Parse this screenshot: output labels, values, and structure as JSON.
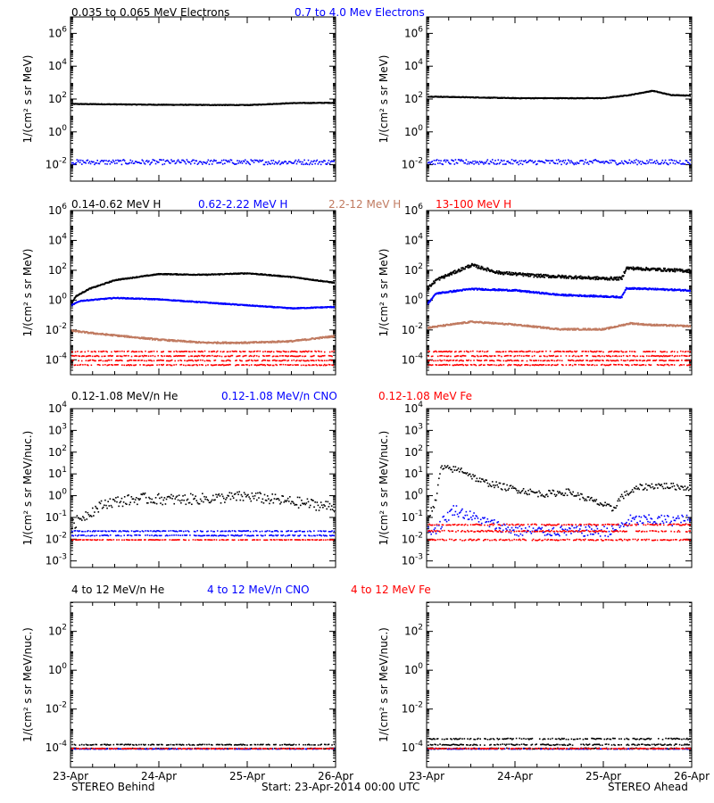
{
  "colors": {
    "black": "#000000",
    "blue": "#0000ff",
    "tan": "#c07a60",
    "red": "#ff0000"
  },
  "rows": [
    {
      "legend": [
        {
          "text": "0.035 to 0.065 MeV Electrons",
          "color": "#000000"
        },
        {
          "text": "0.7 to 4.0 Mev Electrons",
          "color": "#0000ff"
        }
      ],
      "ylabel": "1/(cm² s sr MeV)"
    },
    {
      "legend": [
        {
          "text": "0.14-0.62 MeV H",
          "color": "#000000"
        },
        {
          "text": "0.62-2.22 MeV H",
          "color": "#0000ff"
        },
        {
          "text": "2.2-12 MeV H",
          "color": "#c07a60"
        },
        {
          "text": "13-100 MeV H",
          "color": "#ff0000"
        }
      ],
      "ylabel": "1/(cm² s sr MeV)"
    },
    {
      "legend": [
        {
          "text": "0.12-1.08 MeV/n He",
          "color": "#000000"
        },
        {
          "text": "0.12-1.08 MeV/n CNO",
          "color": "#0000ff"
        },
        {
          "text": "0.12-1.08 MeV Fe",
          "color": "#ff0000"
        }
      ],
      "ylabel": "1/(cm² s sr MeV/nuc.)"
    },
    {
      "legend": [
        {
          "text": "4 to 12 MeV/n He",
          "color": "#000000"
        },
        {
          "text": "4 to 12 MeV/n CNO",
          "color": "#0000ff"
        },
        {
          "text": "4 to 12 MeV Fe",
          "color": "#ff0000"
        }
      ],
      "ylabel": "1/(cm² s sr MeV/nuc.)"
    }
  ],
  "x_ticks": [
    "23-Apr",
    "24-Apr",
    "25-Apr",
    "26-Apr"
  ],
  "footer": {
    "left": "STEREO Behind",
    "center": "Start: 23-Apr-2014 00:00 UTC",
    "right": "STEREO Ahead"
  },
  "chart_data": [
    {
      "type": "scatter",
      "panel": "electrons",
      "spacecraft": "Behind",
      "ylog": true,
      "ylim_exp": [
        -3,
        7
      ],
      "ytick_exps": [
        -2,
        0,
        2,
        4,
        6
      ],
      "x_days": [
        0,
        3
      ],
      "series": [
        {
          "name": "0.035 to 0.065 MeV Electrons",
          "color": "#000000",
          "style": "line",
          "keys_days": [
            0,
            1,
            2,
            2.5,
            3
          ],
          "keys_logy": [
            1.75,
            1.7,
            1.68,
            1.8,
            1.82
          ],
          "noise": 0.02
        },
        {
          "name": "0.7 to 4.0 Mev Electrons",
          "color": "#0000ff",
          "style": "dots",
          "keys_days": [
            0,
            3
          ],
          "keys_logy": [
            -1.8,
            -1.8
          ],
          "noise": 0.15
        }
      ]
    },
    {
      "type": "scatter",
      "panel": "electrons",
      "spacecraft": "Ahead",
      "ylog": true,
      "ylim_exp": [
        -3,
        7
      ],
      "ytick_exps": [
        -2,
        0,
        2,
        4,
        6
      ],
      "x_days": [
        0,
        3
      ],
      "series": [
        {
          "name": "0.035 to 0.065 MeV Electrons",
          "color": "#000000",
          "style": "line",
          "keys_days": [
            0,
            1,
            2,
            2.3,
            2.55,
            2.75,
            3
          ],
          "keys_logy": [
            2.2,
            2.1,
            2.1,
            2.3,
            2.55,
            2.3,
            2.25
          ],
          "noise": 0.02
        },
        {
          "name": "0.7 to 4.0 Mev Electrons",
          "color": "#0000ff",
          "style": "dots",
          "keys_days": [
            0,
            3
          ],
          "keys_logy": [
            -1.8,
            -1.8
          ],
          "noise": 0.15
        }
      ]
    },
    {
      "type": "scatter",
      "panel": "protons",
      "spacecraft": "Behind",
      "ylog": true,
      "ylim_exp": [
        -5,
        6
      ],
      "ytick_exps": [
        -4,
        -2,
        0,
        2,
        4,
        6
      ],
      "x_days": [
        0,
        3
      ],
      "series": [
        {
          "name": "0.14-0.62 MeV H",
          "color": "#000000",
          "style": "line",
          "keys_days": [
            0,
            0.05,
            0.2,
            0.5,
            1.0,
            1.5,
            2.0,
            2.5,
            3
          ],
          "keys_logy": [
            -0.2,
            0.3,
            0.8,
            1.4,
            1.8,
            1.75,
            1.85,
            1.6,
            1.2
          ],
          "noise": 0.03
        },
        {
          "name": "0.62-2.22 MeV H",
          "color": "#0000ff",
          "style": "line",
          "keys_days": [
            0,
            0.1,
            0.5,
            1.0,
            1.5,
            2.0,
            2.5,
            3
          ],
          "keys_logy": [
            -0.3,
            0.0,
            0.2,
            0.1,
            -0.1,
            -0.3,
            -0.5,
            -0.4
          ],
          "noise": 0.03
        },
        {
          "name": "2.2-12 MeV H",
          "color": "#c07a60",
          "style": "line",
          "keys_days": [
            0,
            0.3,
            1.0,
            1.5,
            2.0,
            2.5,
            3
          ],
          "keys_logy": [
            -2.0,
            -2.2,
            -2.6,
            -2.8,
            -2.8,
            -2.7,
            -2.35
          ],
          "noise": 0.05
        },
        {
          "name": "13-100 MeV H",
          "color": "#ff0000",
          "style": "bands",
          "band_logy": [
            -3.4,
            -3.7,
            -4.0,
            -4.3
          ],
          "noise": 0.03
        }
      ]
    },
    {
      "type": "scatter",
      "panel": "protons",
      "spacecraft": "Ahead",
      "ylog": true,
      "ylim_exp": [
        -5,
        6
      ],
      "ytick_exps": [
        -4,
        -2,
        0,
        2,
        4,
        6
      ],
      "x_days": [
        0,
        3
      ],
      "series": [
        {
          "name": "0.14-0.62 MeV H",
          "color": "#000000",
          "style": "line",
          "keys_days": [
            0,
            0.1,
            0.5,
            0.8,
            1.2,
            1.6,
            2.0,
            2.2,
            2.25,
            3
          ],
          "keys_logy": [
            0.8,
            1.4,
            2.4,
            1.9,
            1.7,
            1.6,
            1.5,
            1.5,
            2.2,
            2.0
          ],
          "noise": 0.1
        },
        {
          "name": "0.62-2.22 MeV H",
          "color": "#0000ff",
          "style": "line",
          "keys_days": [
            0,
            0.1,
            0.5,
            1.0,
            1.5,
            2.0,
            2.2,
            2.25,
            3
          ],
          "keys_logy": [
            -0.2,
            0.5,
            0.8,
            0.7,
            0.4,
            0.3,
            0.25,
            0.85,
            0.7
          ],
          "noise": 0.05
        },
        {
          "name": "2.2-12 MeV H",
          "color": "#c07a60",
          "style": "line",
          "keys_days": [
            0,
            0.5,
            1.0,
            1.5,
            2.0,
            2.3,
            2.5,
            3
          ],
          "keys_logy": [
            -1.8,
            -1.4,
            -1.6,
            -1.9,
            -1.9,
            -1.5,
            -1.6,
            -1.7
          ],
          "noise": 0.05
        },
        {
          "name": "13-100 MeV H",
          "color": "#ff0000",
          "style": "bands",
          "band_logy": [
            -3.4,
            -3.7,
            -4.0,
            -4.3
          ],
          "noise": 0.03
        }
      ]
    },
    {
      "type": "scatter",
      "panel": "heavy-ions-low",
      "spacecraft": "Behind",
      "ylog": true,
      "ylim_exp": [
        -3.3,
        4
      ],
      "ytick_exps": [
        -3,
        -2,
        -1,
        0,
        1,
        2,
        3,
        4
      ],
      "x_days": [
        0,
        3
      ],
      "series": [
        {
          "name": "0.12-1.08 MeV/n He",
          "color": "#000000",
          "style": "dots",
          "keys_days": [
            0,
            0.1,
            0.4,
            0.8,
            1.2,
            1.6,
            2.0,
            2.4,
            2.8,
            3
          ],
          "keys_logy": [
            -1.4,
            -1.0,
            -0.3,
            -0.1,
            -0.15,
            -0.1,
            0.0,
            -0.2,
            -0.4,
            -0.5
          ],
          "noise": 0.25
        },
        {
          "name": "0.12-1.08 MeV/n CNO",
          "color": "#0000ff",
          "style": "bands",
          "band_logy": [
            -1.6,
            -1.8
          ],
          "noise": 0.02
        },
        {
          "name": "0.12-1.08 MeV Fe",
          "color": "#ff0000",
          "style": "bands",
          "band_logy": [
            -2.0
          ],
          "noise": 0.01
        }
      ]
    },
    {
      "type": "scatter",
      "panel": "heavy-ions-low",
      "spacecraft": "Ahead",
      "ylog": true,
      "ylim_exp": [
        -3.3,
        4
      ],
      "ytick_exps": [
        -3,
        -2,
        -1,
        0,
        1,
        2,
        3,
        4
      ],
      "x_days": [
        0,
        3
      ],
      "series": [
        {
          "name": "0.12-1.08 MeV/n He",
          "color": "#000000",
          "style": "dots",
          "keys_days": [
            0,
            0.1,
            0.15,
            0.4,
            0.6,
            0.9,
            1.3,
            1.6,
            2.0,
            2.1,
            2.2,
            2.4,
            2.6,
            3
          ],
          "keys_logy": [
            -1.0,
            -0.2,
            1.3,
            1.2,
            0.7,
            0.4,
            0.1,
            0.2,
            -0.4,
            -0.6,
            0.0,
            0.4,
            0.5,
            0.4
          ],
          "noise": 0.15
        },
        {
          "name": "0.12-1.08 MeV/n CNO",
          "color": "#0000ff",
          "style": "dots",
          "keys_days": [
            0,
            0.1,
            0.3,
            0.6,
            1.0,
            2.1,
            2.3,
            3
          ],
          "keys_logy": [
            -1.5,
            -1.5,
            -0.6,
            -1.1,
            -1.6,
            -1.6,
            -1.1,
            -1.1
          ],
          "noise": 0.25
        },
        {
          "name": "0.12-1.08 MeV Fe",
          "color": "#ff0000",
          "style": "bands",
          "band_logy": [
            -1.3,
            -1.6,
            -2.0
          ],
          "noise": 0.03
        }
      ]
    },
    {
      "type": "scatter",
      "panel": "heavy-ions-high",
      "spacecraft": "Behind",
      "ylog": true,
      "ylim_exp": [
        -5,
        3.5
      ],
      "ytick_exps": [
        -4,
        -2,
        0,
        2
      ],
      "x_days": [
        0,
        3
      ],
      "series": [
        {
          "name": "4 to 12 MeV/n He",
          "color": "#000000",
          "style": "bands",
          "band_logy": [
            -4.0,
            -3.8
          ],
          "noise": 0.02
        },
        {
          "name": "4 to 12 MeV/n CNO",
          "color": "#0000ff",
          "style": "bands",
          "band_logy": [
            -4.02
          ],
          "noise": 0.01
        },
        {
          "name": "4 to 12 MeV Fe",
          "color": "#ff0000",
          "style": "bands",
          "band_logy": [
            -4.0
          ],
          "noise": 0.01
        }
      ]
    },
    {
      "type": "scatter",
      "panel": "heavy-ions-high",
      "spacecraft": "Ahead",
      "ylog": true,
      "ylim_exp": [
        -5,
        3.5
      ],
      "ytick_exps": [
        -4,
        -2,
        0,
        2
      ],
      "x_days": [
        0,
        3
      ],
      "series": [
        {
          "name": "4 to 12 MeV/n He",
          "color": "#000000",
          "style": "bands",
          "band_logy": [
            -4.0,
            -3.8,
            -3.5
          ],
          "noise": 0.03
        },
        {
          "name": "4 to 12 MeV/n CNO",
          "color": "#0000ff",
          "style": "bands",
          "band_logy": [
            -4.02
          ],
          "noise": 0.01
        },
        {
          "name": "4 to 12 MeV Fe",
          "color": "#ff0000",
          "style": "bands",
          "band_logy": [
            -4.0
          ],
          "noise": 0.01
        }
      ]
    }
  ]
}
